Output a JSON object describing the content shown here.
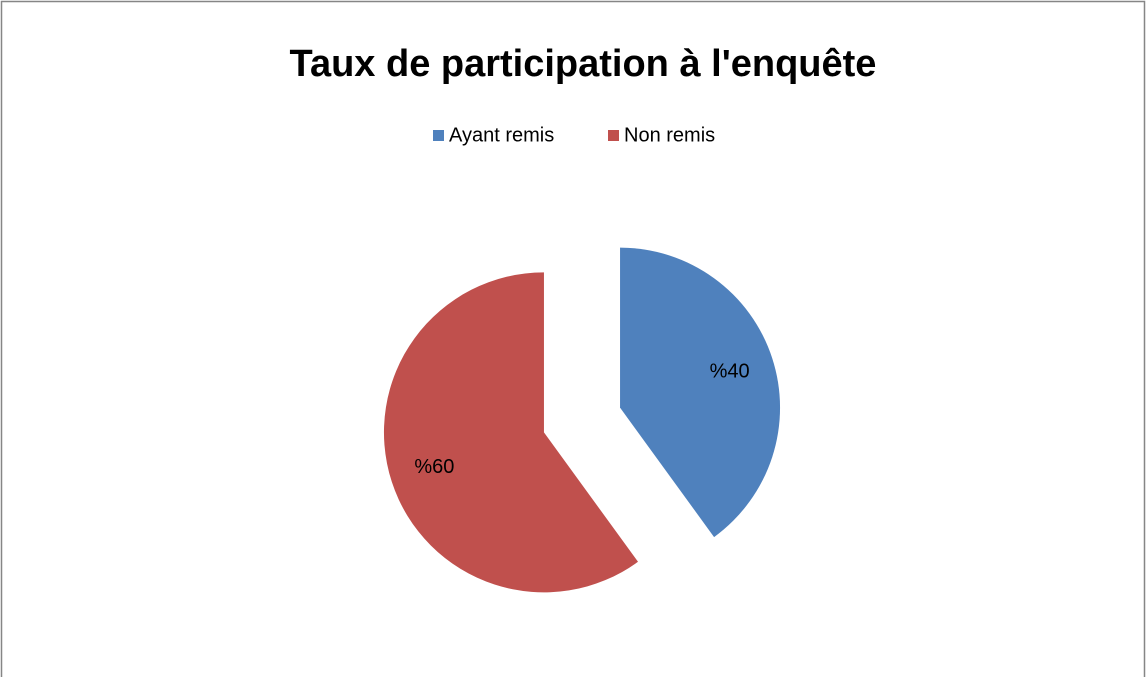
{
  "chart_data": {
    "type": "pie",
    "title": "Taux de participation à l'enquête",
    "categories": [
      "Ayant remis",
      "Non remis"
    ],
    "values": [
      40,
      60
    ],
    "value_labels": [
      "%40",
      "%60"
    ],
    "colors": [
      "#4f81bd",
      "#c0504d"
    ],
    "legend": "top"
  }
}
